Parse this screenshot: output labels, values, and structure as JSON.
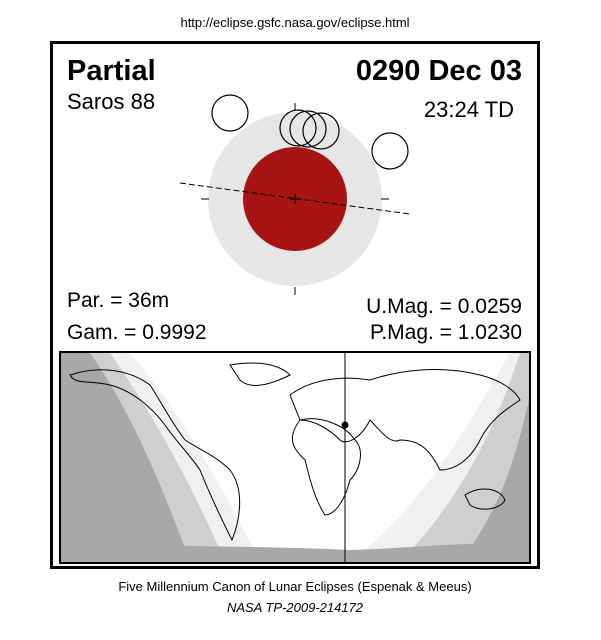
{
  "header": {
    "url": "http://eclipse.gsfc.nasa.gov/eclipse.html"
  },
  "eclipse": {
    "type": "Partial",
    "date": "0290 Dec 03",
    "saros": "Saros  88",
    "time": "23:24 TD",
    "duration": "Par. =  36m",
    "gamma": "Gam. = 0.9992",
    "umag": "U.Mag. = 0.0259",
    "pmag": "P.Mag. = 1.0230"
  },
  "footer": {
    "canon": "Five Millennium Canon of Lunar Eclipses (Espenak & Meeus)",
    "reference": "NASA TP-2009-214172"
  }
}
